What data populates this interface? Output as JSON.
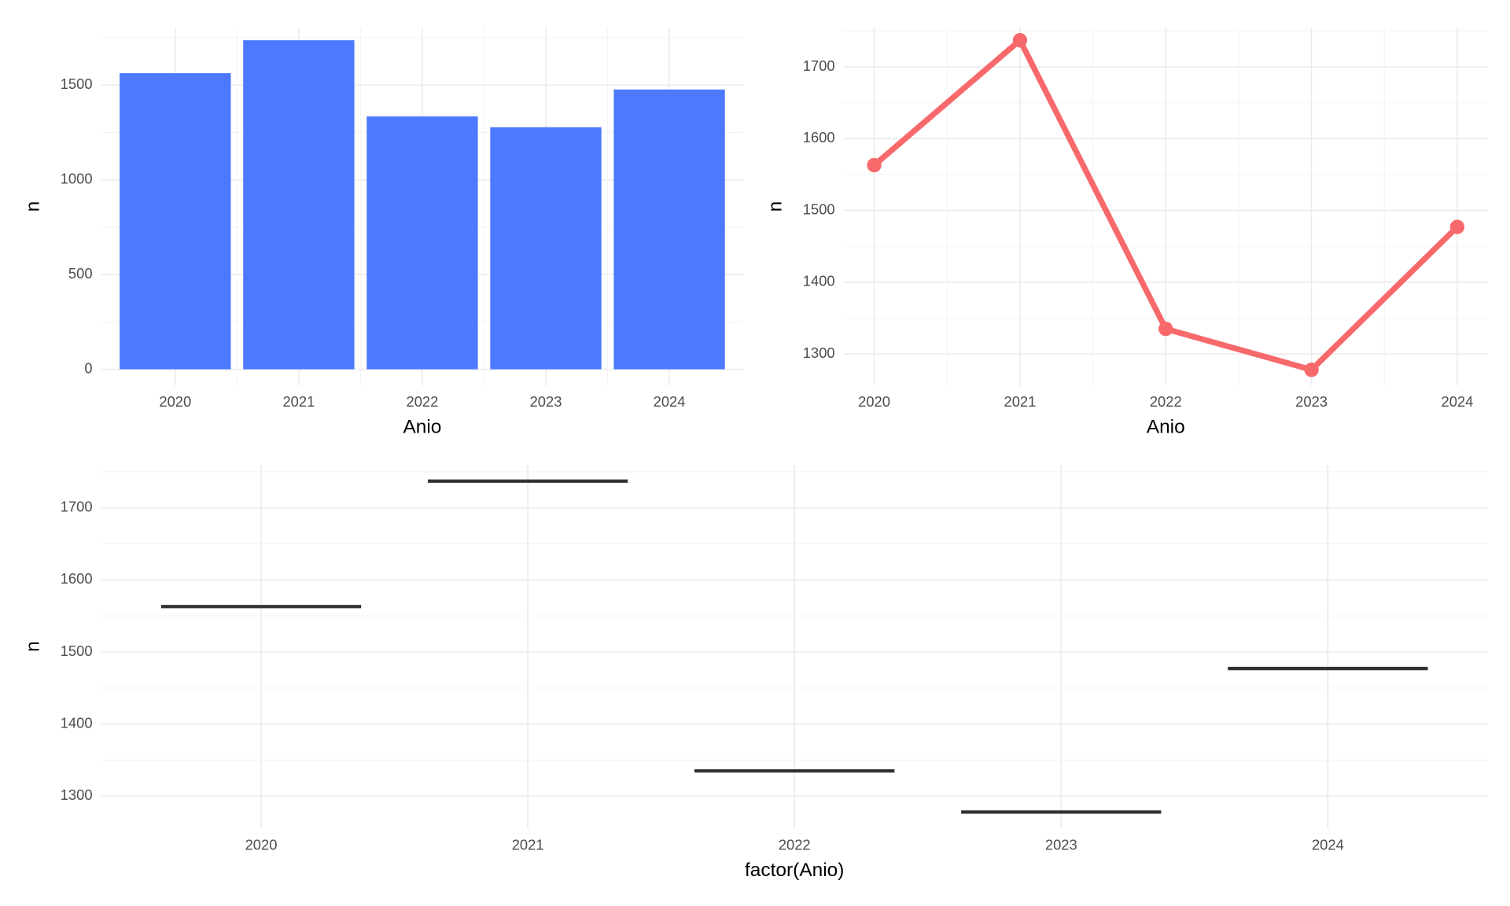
{
  "chart_data": [
    {
      "type": "bar",
      "x_label": "Anio",
      "y_label": "n",
      "categories": [
        "2020",
        "2021",
        "2022",
        "2023",
        "2024"
      ],
      "values": [
        1563,
        1737,
        1335,
        1278,
        1477
      ],
      "color": "#4d79ff",
      "ylim": [
        -86,
        1805
      ],
      "yticks": [
        0,
        500,
        1000,
        1500
      ],
      "grid": true
    },
    {
      "type": "line",
      "x_label": "Anio",
      "y_label": "n",
      "x": [
        2020,
        2021,
        2022,
        2023,
        2024
      ],
      "values": [
        1563,
        1737,
        1335,
        1278,
        1477
      ],
      "color": "#f8696b",
      "xlim": [
        2019.79,
        2024.21
      ],
      "xticks": [
        2020,
        2021,
        2022,
        2023,
        2024
      ],
      "ylim": [
        1256,
        1755
      ],
      "yticks": [
        1300,
        1400,
        1500,
        1600,
        1700
      ],
      "grid": true
    },
    {
      "type": "box",
      "x_label": "factor(Anio)",
      "y_label": "n",
      "categories": [
        "2020",
        "2021",
        "2022",
        "2023",
        "2024"
      ],
      "values": [
        1563,
        1737,
        1335,
        1278,
        1477
      ],
      "color": "#333333",
      "ylim": [
        1255,
        1760
      ],
      "yticks": [
        1300,
        1400,
        1500,
        1600,
        1700
      ],
      "grid": true
    }
  ]
}
